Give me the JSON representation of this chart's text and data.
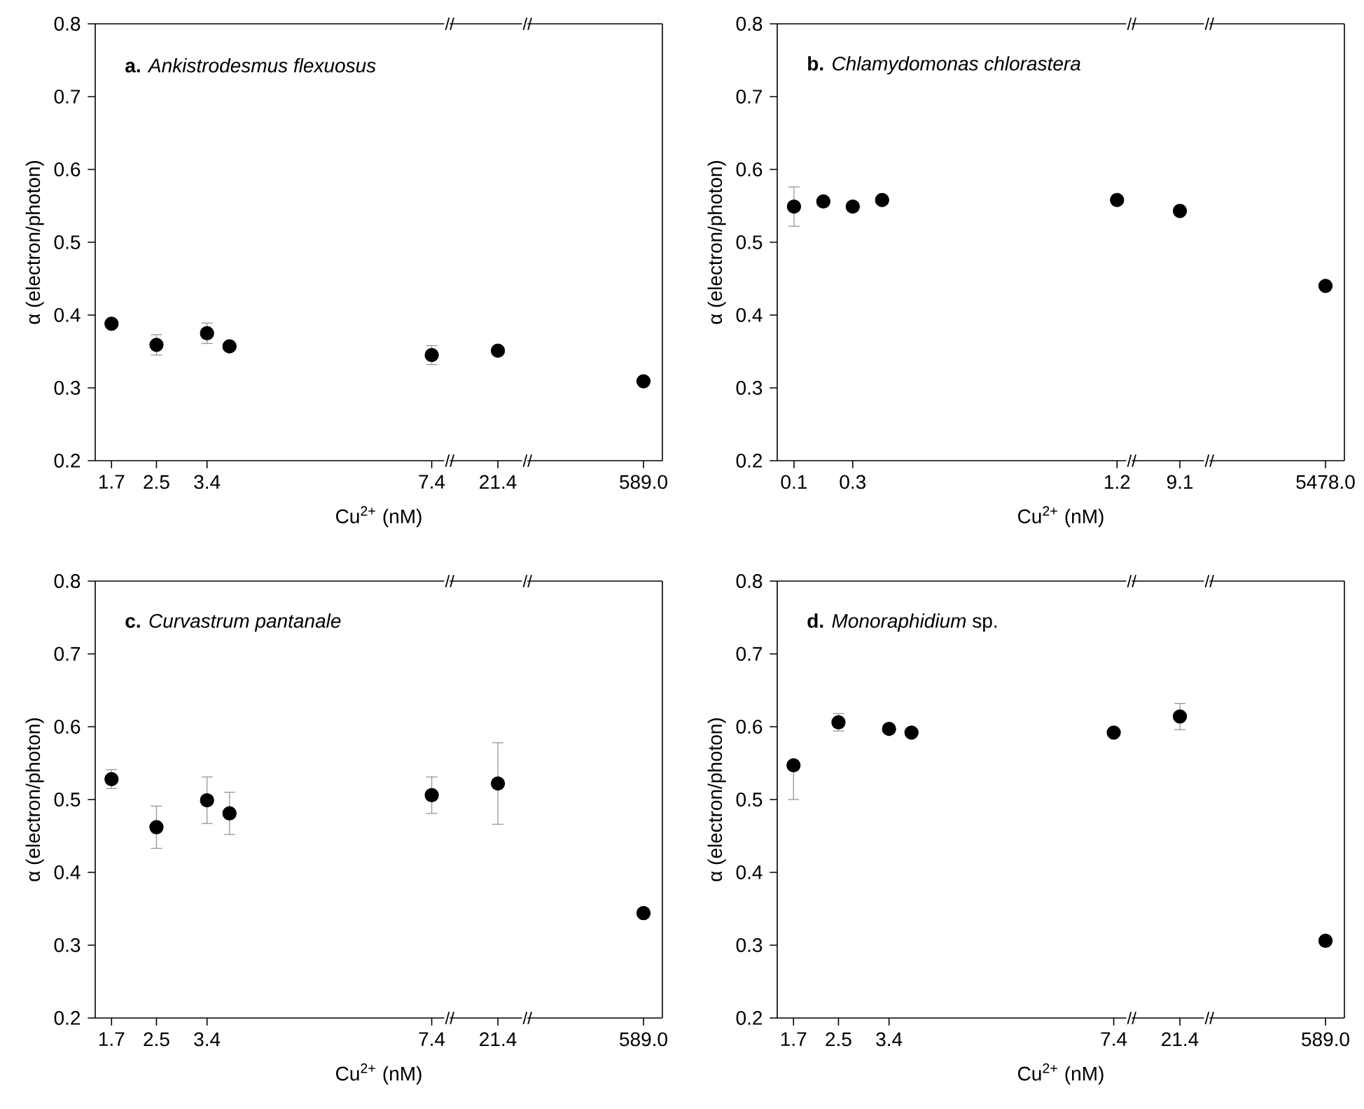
{
  "chart_data": [
    {
      "type": "scatter",
      "title": "**a.** *Ankistrodesmus flexuosus*",
      "xlabel": "Cu$^{2+}$ (nM)",
      "ylabel": "α (electron/photon)",
      "x": [
        1.7,
        2.5,
        3.4,
        3.8,
        7.4
      ],
      "series": [
        {
          "color": "#000000",
          "values": [
            0.388,
            0.359,
            0.375,
            0.357,
            0.345
          ],
          "errors": [
            null,
            0.014,
            0.014,
            null,
            0.013
          ]
        }
      ],
      "xlim": [
        1.41,
        7.72
      ],
      "ylim": [
        0.2,
        0.8
      ],
      "xticks": [
        1.7,
        2.5,
        3.4,
        7.4
      ],
      "yticks": [
        0.2,
        0.3,
        0.4,
        0.5,
        0.6,
        0.7,
        0.8
      ],
      "marker": "circle",
      "annotations": [
        "//",
        "//"
      ]
    },
    {
      "type": "scatter",
      "categories": [
        "21.4"
      ],
      "series": [
        {
          "color": "#000000",
          "values": [
            0.351
          ]
        }
      ],
      "ylim": [
        0.2,
        0.8
      ],
      "tick_labels": "x",
      "marker": "circle",
      "annotations": [
        "//",
        "//"
      ]
    },
    {
      "type": "scatter",
      "categories": [
        "589.0"
      ],
      "series": [
        {
          "color": "#000000",
          "values": [
            0.309
          ]
        }
      ],
      "ylim": [
        0.2,
        0.8
      ],
      "tick_labels": "x",
      "marker": "circle"
    },
    {
      "type": "scatter",
      "title": "**b.** *Chlamydomonas chlorastera*",
      "xlabel": "Cu$^{2+}$ (nM)",
      "ylabel": "α (electron/photon)",
      "x": [
        0.1,
        0.2,
        0.3,
        0.4,
        1.2
      ],
      "series": [
        {
          "color": "#000000",
          "values": [
            0.549,
            0.556,
            0.549,
            0.558,
            0.558
          ],
          "errors": [
            0.027,
            null,
            null,
            null,
            null
          ]
        }
      ],
      "xlim": [
        0.043,
        1.25
      ],
      "ylim": [
        0.2,
        0.8
      ],
      "xticks": [
        0.1,
        0.3,
        1.2
      ],
      "yticks": [
        0.2,
        0.3,
        0.4,
        0.5,
        0.6,
        0.7,
        0.8
      ],
      "marker": "circle",
      "annotations": [
        "//",
        "//"
      ]
    },
    {
      "type": "scatter",
      "categories": [
        "9.1"
      ],
      "series": [
        {
          "color": "#000000",
          "values": [
            0.543
          ]
        }
      ],
      "ylim": [
        0.2,
        0.8
      ],
      "tick_labels": "x",
      "marker": "circle",
      "annotations": [
        "//",
        "//"
      ]
    },
    {
      "type": "scatter",
      "categories": [
        "5478.0"
      ],
      "series": [
        {
          "color": "#000000",
          "values": [
            0.44
          ]
        }
      ],
      "ylim": [
        0.2,
        0.8
      ],
      "tick_labels": "x",
      "marker": "circle"
    },
    {
      "type": "scatter",
      "title": "**c.** *Curvastrum pantanale*",
      "xlabel": "Cu$^{2+}$ (nM)",
      "ylabel": "α (electron/photon)",
      "x": [
        1.7,
        2.5,
        3.4,
        3.8,
        7.4
      ],
      "series": [
        {
          "color": "#000000",
          "values": [
            0.528,
            0.462,
            0.499,
            0.481,
            0.506
          ],
          "errors": [
            0.013,
            0.029,
            0.032,
            0.029,
            0.025
          ]
        }
      ],
      "xlim": [
        1.41,
        7.72
      ],
      "ylim": [
        0.2,
        0.8
      ],
      "xticks": [
        1.7,
        2.5,
        3.4,
        7.4
      ],
      "yticks": [
        0.2,
        0.3,
        0.4,
        0.5,
        0.6,
        0.7,
        0.8
      ],
      "marker": "circle",
      "annotations": [
        "//",
        "//"
      ]
    },
    {
      "type": "scatter",
      "categories": [
        "21.4"
      ],
      "series": [
        {
          "color": "#000000",
          "values": [
            0.522
          ],
          "errors": [
            0.056
          ]
        }
      ],
      "ylim": [
        0.2,
        0.8
      ],
      "tick_labels": "x",
      "marker": "circle",
      "annotations": [
        "//",
        "//"
      ]
    },
    {
      "type": "scatter",
      "categories": [
        "589.0"
      ],
      "series": [
        {
          "color": "#000000",
          "values": [
            0.344
          ]
        }
      ],
      "ylim": [
        0.2,
        0.8
      ],
      "tick_labels": "x",
      "marker": "circle"
    },
    {
      "type": "scatter",
      "title": "**d.** *Monoraphidium* sp.",
      "xlabel": "Cu$^{2+}$ (nM)",
      "ylabel": "α (electron/photon)",
      "x": [
        1.7,
        2.5,
        3.4,
        3.8,
        7.4
      ],
      "series": [
        {
          "color": "#000000",
          "values": [
            0.547,
            0.606,
            0.597,
            0.592,
            0.592
          ],
          "errors": [
            [
              0.5,
              0.547
            ],
            0.012,
            null,
            null,
            null
          ]
        }
      ],
      "xlim": [
        1.41,
        7.72
      ],
      "ylim": [
        0.2,
        0.8
      ],
      "xticks": [
        1.7,
        2.5,
        3.4,
        7.4
      ],
      "yticks": [
        0.2,
        0.3,
        0.4,
        0.5,
        0.6,
        0.7,
        0.8
      ],
      "marker": "circle",
      "annotations": [
        "//",
        "//"
      ]
    },
    {
      "type": "scatter",
      "categories": [
        "21.4"
      ],
      "series": [
        {
          "color": "#000000",
          "values": [
            0.614
          ],
          "errors": [
            0.018
          ]
        }
      ],
      "ylim": [
        0.2,
        0.8
      ],
      "tick_labels": "x",
      "marker": "circle",
      "annotations": [
        "//",
        "//"
      ]
    },
    {
      "type": "scatter",
      "categories": [
        "589.0"
      ],
      "series": [
        {
          "color": "#000000",
          "values": [
            0.306
          ]
        }
      ],
      "ylim": [
        0.2,
        0.8
      ],
      "tick_labels": "x",
      "marker": "circle"
    }
  ]
}
